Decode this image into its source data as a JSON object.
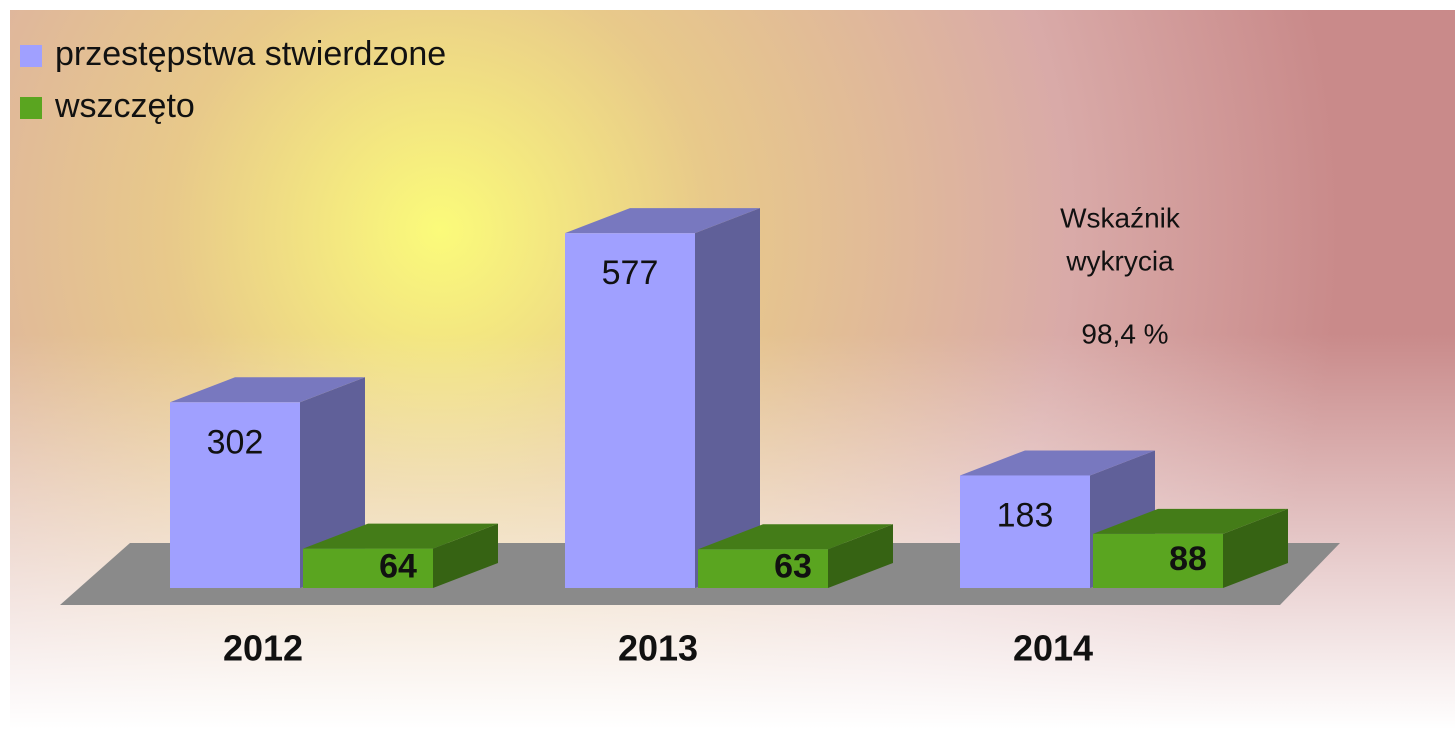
{
  "chart_data": {
    "type": "bar3d",
    "categories": [
      "2012",
      "2013",
      "2014"
    ],
    "series": [
      {
        "name": "przestępstwa stwierdzone",
        "color": "#a0a0ff",
        "values": [
          302,
          577,
          183
        ]
      },
      {
        "name": "wszczęto",
        "color": "#5aa520",
        "values": [
          64,
          63,
          88
        ]
      }
    ],
    "annotation": {
      "lines": [
        "Wskaźnik",
        "wykrycia"
      ],
      "value": "98,4 %"
    }
  }
}
